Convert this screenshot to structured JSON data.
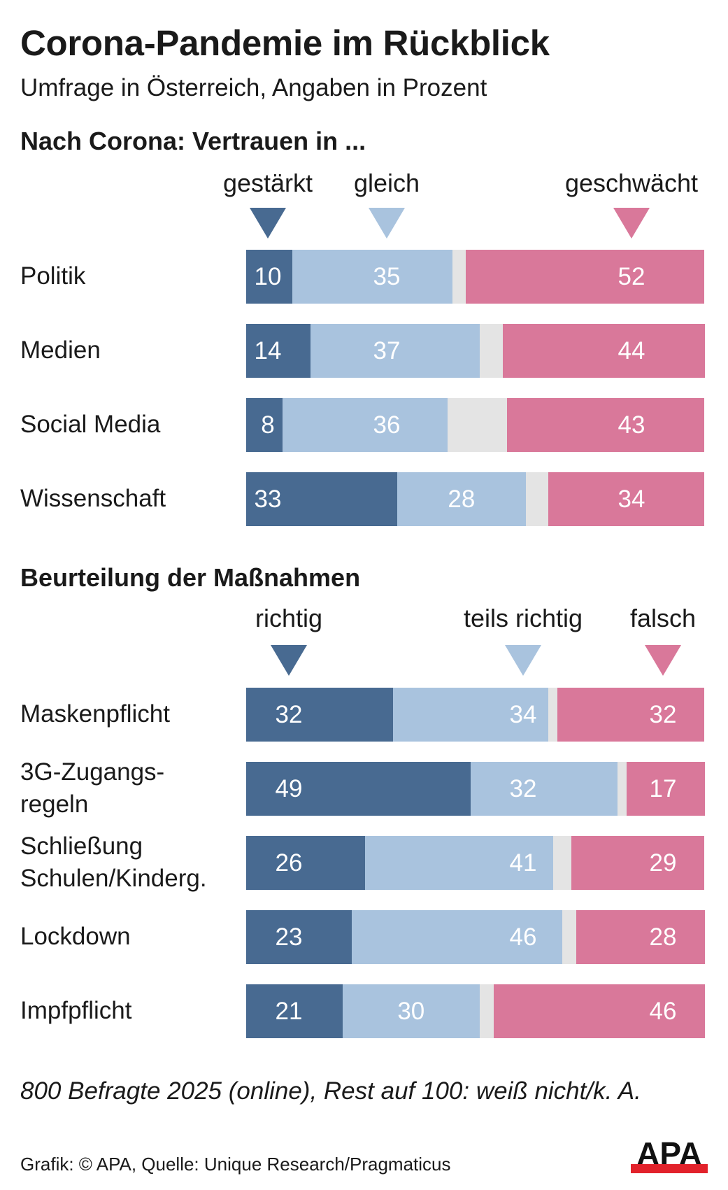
{
  "header": {
    "title": "Corona-Pandemie im Rückblick",
    "subtitle": "Umfrage in Österreich, Angaben in Prozent"
  },
  "colors": {
    "dark_blue": "#486a91",
    "light_blue": "#a9c3de",
    "gray": "#e4e4e4",
    "pink": "#d9789a",
    "logo_red": "#e2222b"
  },
  "chart_data": [
    {
      "type": "bar",
      "orientation": "horizontal",
      "stacked": true,
      "title": "Nach Corona: Vertrauen in ...",
      "categories": [
        "Politik",
        "Medien",
        "Social Media",
        "Wissenschaft"
      ],
      "series": [
        {
          "name": "gestärkt",
          "color": "#486a91",
          "values": [
            10,
            14,
            8,
            33
          ]
        },
        {
          "name": "gleich",
          "color": "#a9c3de",
          "values": [
            35,
            37,
            36,
            28
          ]
        },
        {
          "name": "weiß nicht/k. A.",
          "color": "#e4e4e4",
          "values": [
            3,
            5,
            13,
            5
          ],
          "labeled": false
        },
        {
          "name": "geschwächt",
          "color": "#d9789a",
          "values": [
            52,
            44,
            43,
            34
          ]
        }
      ],
      "legend": {
        "placement": "top",
        "entries": [
          "gestärkt",
          "gleich",
          "geschwächt"
        ]
      },
      "xlim": [
        0,
        100
      ],
      "unit": "%"
    },
    {
      "type": "bar",
      "orientation": "horizontal",
      "stacked": true,
      "title": "Beurteilung der Maßnahmen",
      "categories": [
        "3G-Zugangs-\nregeln",
        "Maskenpflicht",
        "Schließung\nSchulen/Kinderg.",
        "Lockdown",
        "Impfpflicht"
      ],
      "categories_order": [
        "Maskenpflicht",
        "3G-Zugangs-\nregeln",
        "Schließung\nSchulen/Kinderg.",
        "Lockdown",
        "Impfpflicht"
      ],
      "series": [
        {
          "name": "richtig",
          "color": "#486a91",
          "values": [
            49,
            32,
            26,
            23,
            21
          ]
        },
        {
          "name": "teils richtig",
          "color": "#a9c3de",
          "values": [
            32,
            34,
            41,
            46,
            30
          ]
        },
        {
          "name": "weiß nicht/k. A.",
          "color": "#e4e4e4",
          "values": [
            2,
            2,
            4,
            3,
            3
          ],
          "labeled": false
        },
        {
          "name": "falsch",
          "color": "#d9789a",
          "values": [
            17,
            32,
            29,
            28,
            46
          ]
        }
      ],
      "legend": {
        "placement": "top",
        "entries": [
          "richtig",
          "teils richtig",
          "falsch"
        ]
      },
      "xlim": [
        0,
        100
      ],
      "unit": "%"
    }
  ],
  "footer": {
    "note": "800 Befragte 2025 (online), Rest auf 100: weiß nicht/k. A.",
    "source": "Grafik: © APA, Quelle: Unique Research/Pragmaticus",
    "logo_text": "APA"
  }
}
